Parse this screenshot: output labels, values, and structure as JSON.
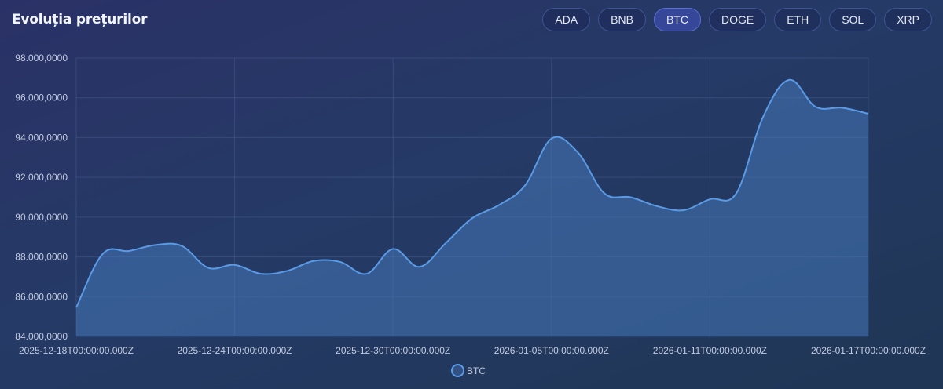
{
  "header": {
    "title": "Evoluția prețurilor",
    "tabs": [
      {
        "label": "ADA",
        "active": false
      },
      {
        "label": "BNB",
        "active": false
      },
      {
        "label": "BTC",
        "active": true
      },
      {
        "label": "DOGE",
        "active": false
      },
      {
        "label": "ETH",
        "active": false
      },
      {
        "label": "SOL",
        "active": false
      },
      {
        "label": "XRP",
        "active": false
      }
    ]
  },
  "legend": {
    "label": "BTC",
    "color": "#5b9be6"
  },
  "colors": {
    "line": "#5b9be6",
    "fill": "rgba(70,120,185,0.55)",
    "grid": "rgba(120,145,200,0.22)"
  },
  "chart_data": {
    "type": "area",
    "title": "Evoluția prețurilor",
    "xlabel": "",
    "ylabel": "",
    "ylim": [
      84000000,
      98000000
    ],
    "grid": true,
    "legend_position": "bottom",
    "y_ticks": [
      "84.000,0000",
      "86.000,0000",
      "88.000,0000",
      "90.000,0000",
      "92.000,0000",
      "94.000,0000",
      "96.000,0000",
      "98.000,0000"
    ],
    "y_tick_values": [
      84000000,
      86000000,
      88000000,
      90000000,
      92000000,
      94000000,
      96000000,
      98000000
    ],
    "x_ticks": [
      "2025-12-18T00:00:00.000Z",
      "2025-12-24T00:00:00.000Z",
      "2025-12-30T00:00:00.000Z",
      "2026-01-05T00:00:00.000Z",
      "2026-01-11T00:00:00.000Z",
      "2026-01-17T00:00:00.000Z"
    ],
    "x": [
      "2025-12-18",
      "2025-12-19",
      "2025-12-20",
      "2025-12-21",
      "2025-12-22",
      "2025-12-23",
      "2025-12-24",
      "2025-12-25",
      "2025-12-26",
      "2025-12-27",
      "2025-12-28",
      "2025-12-29",
      "2025-12-30",
      "2025-12-31",
      "2026-01-01",
      "2026-01-02",
      "2026-01-03",
      "2026-01-04",
      "2026-01-05",
      "2026-01-06",
      "2026-01-07",
      "2026-01-08",
      "2026-01-09",
      "2026-01-10",
      "2026-01-11",
      "2026-01-12",
      "2026-01-13",
      "2026-01-14",
      "2026-01-15",
      "2026-01-16",
      "2026-01-17"
    ],
    "series": [
      {
        "name": "BTC",
        "values": [
          85450000,
          88150000,
          88300000,
          88600000,
          88550000,
          87450000,
          87600000,
          87150000,
          87300000,
          87800000,
          87750000,
          87150000,
          88400000,
          87500000,
          88700000,
          89950000,
          90600000,
          91600000,
          93950000,
          93250000,
          91200000,
          91000000,
          90550000,
          90350000,
          90900000,
          91200000,
          95000000,
          96900000,
          95550000,
          95500000,
          95200000
        ]
      }
    ]
  }
}
